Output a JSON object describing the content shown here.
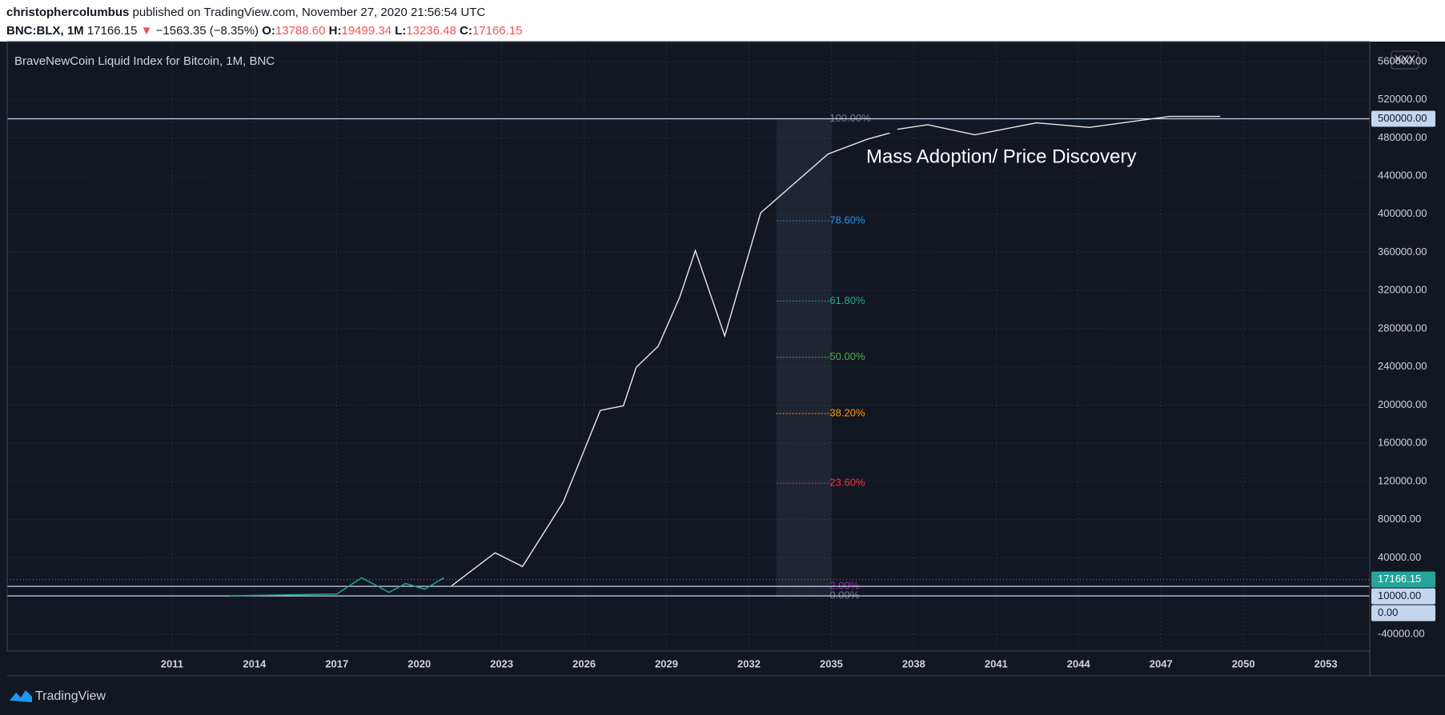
{
  "header": {
    "author": "christophercolumbus",
    "published": "published on TradingView.com, November 27, 2020 21:56:54 UTC",
    "symbol": "BNC:BLX, 1M",
    "change": "−1563.35 (−8.35%)",
    "open_label": "O:",
    "open": "13788.60",
    "high_label": "H:",
    "high": "19499.34",
    "low_label": "L:",
    "low": "13236.48",
    "close_label": "C:",
    "close": "17166.15"
  },
  "footer": {
    "brand": "TradingView"
  },
  "chart_data": {
    "type": "line",
    "title": "BraveNewCoin Liquid Index for Bitcoin, 1M, BNC",
    "corner_label": "XXX",
    "annotation": "Mass Adoption/ Price Discovery",
    "last_price": 17166.15,
    "last_price_color": "#26a69a",
    "xlim": [
      2005,
      2054.6
    ],
    "xticks": [
      2011,
      2014,
      2017,
      2020,
      2023,
      2026,
      2029,
      2032,
      2035,
      2038,
      2041,
      2044,
      2047,
      2050,
      2053
    ],
    "ylim": [
      -57750,
      580850
    ],
    "yticks": [
      {
        "value": 560000,
        "label": "560000.00"
      },
      {
        "value": 520000,
        "label": "520000.00"
      },
      {
        "value": 480000,
        "label": "480000.00"
      },
      {
        "value": 440000,
        "label": "440000.00"
      },
      {
        "value": 400000,
        "label": "400000.00"
      },
      {
        "value": 360000,
        "label": "360000.00"
      },
      {
        "value": 320000,
        "label": "320000.00"
      },
      {
        "value": 280000,
        "label": "280000.00"
      },
      {
        "value": 240000,
        "label": "240000.00"
      },
      {
        "value": 200000,
        "label": "200000.00"
      },
      {
        "value": 160000,
        "label": "160000.00"
      },
      {
        "value": 120000,
        "label": "120000.00"
      },
      {
        "value": 80000,
        "label": "80000.00"
      },
      {
        "value": 40000,
        "label": "40000.00"
      },
      {
        "value": -40000,
        "label": "-40000.00"
      }
    ],
    "grid": true,
    "hlines": [
      {
        "value": 500000,
        "label": "500000.00"
      },
      {
        "value": 10000,
        "label": "10000.00"
      },
      {
        "value": 0,
        "label": "0.00"
      }
    ],
    "hline_color": "#c3d6ee",
    "fib_range": [
      0,
      500000
    ],
    "fib_x": [
      2033,
      2035
    ],
    "fib_levels": [
      {
        "value": 100,
        "label": "100.00%",
        "color": "#787b86"
      },
      {
        "value": 78.6,
        "label": "78.60%",
        "color": "#2196f3"
      },
      {
        "value": 61.8,
        "label": "61.80%",
        "color": "#22ab94"
      },
      {
        "value": 50,
        "label": "50.00%",
        "color": "#4caf50"
      },
      {
        "value": 38.2,
        "label": "38.20%",
        "color": "#ff9800"
      },
      {
        "value": 23.6,
        "label": "23.60%",
        "color": "#f23645"
      },
      {
        "value": 2,
        "label": "2.00%",
        "color": "#9c27b0"
      },
      {
        "value": 0,
        "label": "0.00%",
        "color": "#787b86"
      }
    ],
    "series": [
      {
        "color": "#26a69a",
        "x": [
          2013.1,
          2017.0,
          2017.9,
          2018.9,
          2019.5,
          2020.2,
          2020.9
        ],
        "values": [
          100,
          2000,
          19000,
          3800,
          13000,
          7000,
          19000
        ]
      },
      {
        "color": "#e8e8e8",
        "x": [
          2021.18,
          2022.76,
          2023.76,
          2025.24,
          2026.59,
          2027.43,
          2027.9,
          2028.7,
          2029.48,
          2030.05,
          2031.12,
          2032.43,
          2034.88,
          2036.3,
          2037.13,
          null,
          2037.4,
          2038.51,
          2040.22,
          2042.47,
          2044.39,
          2047.31,
          2049.16
        ],
        "values": [
          10600,
          45200,
          30800,
          98200,
          194400,
          199200,
          239600,
          261800,
          312800,
          361900,
          272400,
          401400,
          463000,
          478400,
          485100,
          null,
          488900,
          493800,
          483200,
          495700,
          490900,
          502400,
          502400
        ]
      }
    ]
  }
}
